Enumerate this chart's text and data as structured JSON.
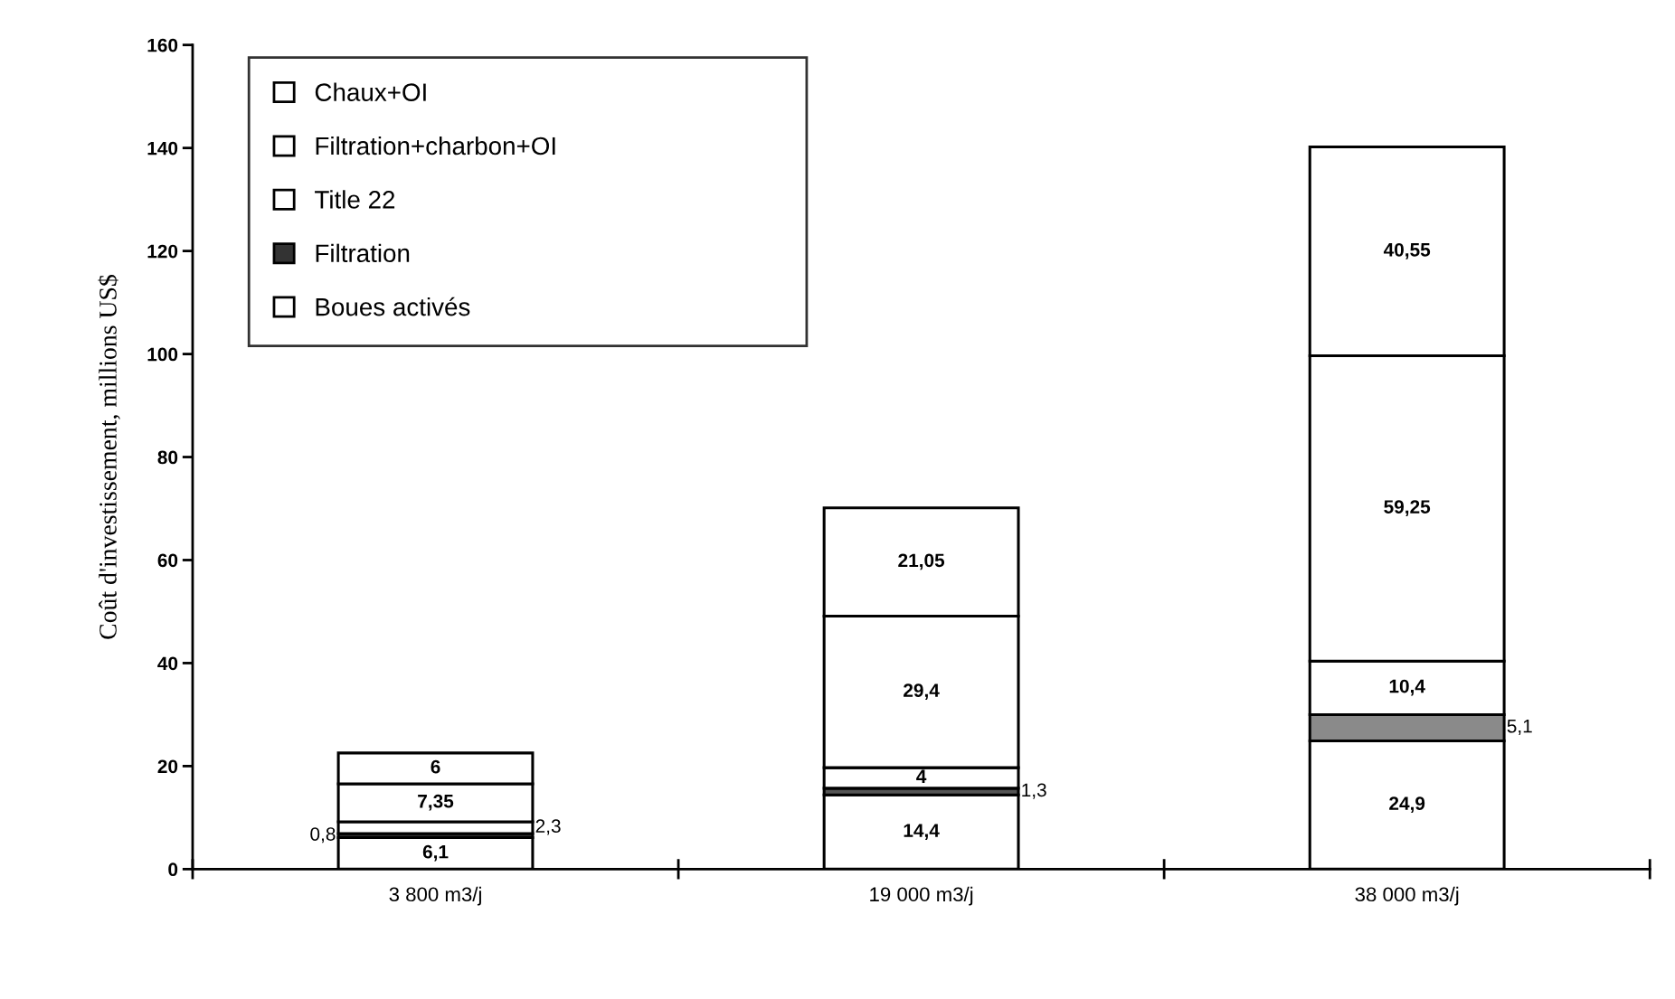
{
  "chart_data": {
    "type": "bar",
    "stacked": true,
    "ylabel": "Coût d'investissement, millions US$",
    "categories": [
      "3 800 m3/j",
      "19 000 m3/j",
      "38 000 m3/j"
    ],
    "series": [
      {
        "name": "Boues activés",
        "color": "#ffffff",
        "values": [
          6.1,
          14.4,
          24.9
        ],
        "value_labels": [
          "6,1",
          "14,4",
          "24,9"
        ]
      },
      {
        "name": "Filtration",
        "color": "#333333",
        "colors": [
          "#333333",
          "#555555",
          "#8a8a8a"
        ],
        "values": [
          0.8,
          1.3,
          5.1
        ],
        "value_labels": [
          "0,8",
          "1,3",
          "5,1"
        ]
      },
      {
        "name": "Title 22",
        "color": "#ffffff",
        "values": [
          2.3,
          4,
          10.4
        ],
        "value_labels": [
          "2,3",
          "4",
          "10,4"
        ]
      },
      {
        "name": "Filtration+charbon+OI",
        "color": "#ffffff",
        "values": [
          7.35,
          29.4,
          59.25
        ],
        "value_labels": [
          "7,35",
          "29,4",
          "59,25"
        ]
      },
      {
        "name": "Chaux+OI",
        "color": "#ffffff",
        "values": [
          6,
          21.05,
          40.55
        ],
        "value_labels": [
          "6",
          "21,05",
          "40,55"
        ]
      }
    ],
    "ylim": [
      0,
      160
    ],
    "yticks": [
      0,
      20,
      40,
      60,
      80,
      100,
      120,
      140,
      160
    ],
    "grid": false,
    "legend": "top left"
  }
}
